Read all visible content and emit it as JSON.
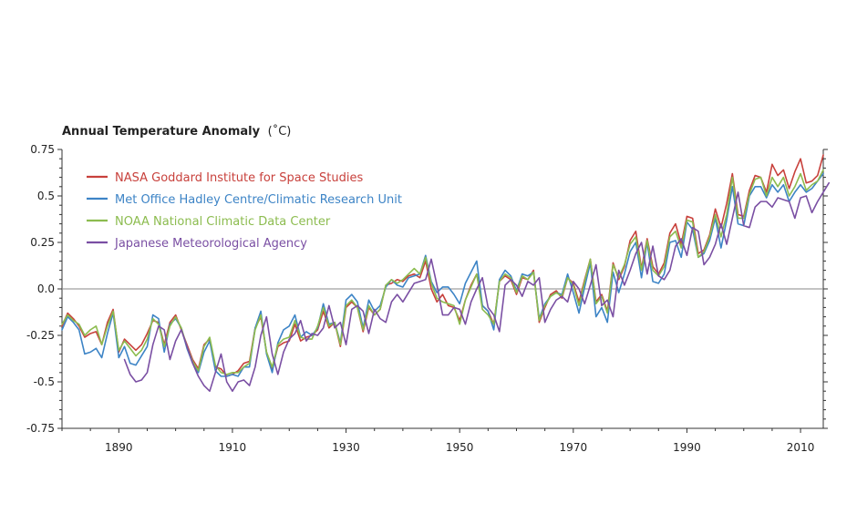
{
  "chart_data": {
    "type": "line",
    "title": "Annual Temperature Anomaly",
    "title_unit": "(˚C)",
    "xlabel": "",
    "ylabel": "",
    "xlim": [
      1880,
      2014
    ],
    "ylim": [
      -0.75,
      0.75
    ],
    "x_ticks": [
      1890,
      1910,
      1930,
      1950,
      1970,
      1990,
      2010
    ],
    "x_tick_labels": [
      "1890",
      "1910",
      "1930",
      "1950",
      "1970",
      "1990",
      "2010"
    ],
    "y_ticks": [
      0.75,
      0.5,
      0.25,
      0.0,
      -0.25,
      -0.5,
      -0.75
    ],
    "y_tick_labels": [
      "0.75",
      "0.5",
      "0.25",
      "0.0",
      "-0.25",
      "-0.5",
      "-0.75"
    ],
    "zero_line": true,
    "grid": false,
    "legend_position": "top-left",
    "series": [
      {
        "name": "NASA Goddard Institute for Space Studies",
        "color": "#c8413c",
        "start": 1880,
        "values": [
          -0.2,
          -0.13,
          -0.16,
          -0.2,
          -0.26,
          -0.24,
          -0.23,
          -0.3,
          -0.18,
          -0.11,
          -0.34,
          -0.27,
          -0.3,
          -0.33,
          -0.3,
          -0.24,
          -0.17,
          -0.18,
          -0.3,
          -0.18,
          -0.14,
          -0.22,
          -0.3,
          -0.38,
          -0.43,
          -0.3,
          -0.27,
          -0.42,
          -0.43,
          -0.47,
          -0.46,
          -0.44,
          -0.4,
          -0.39,
          -0.21,
          -0.15,
          -0.34,
          -0.43,
          -0.31,
          -0.29,
          -0.28,
          -0.19,
          -0.28,
          -0.26,
          -0.25,
          -0.22,
          -0.12,
          -0.21,
          -0.18,
          -0.31,
          -0.1,
          -0.07,
          -0.1,
          -0.23,
          -0.1,
          -0.14,
          -0.11,
          0.02,
          0.03,
          0.05,
          0.04,
          0.07,
          0.08,
          0.06,
          0.15,
          0.0,
          -0.07,
          -0.03,
          -0.09,
          -0.1,
          -0.17,
          -0.06,
          0.02,
          0.08,
          -0.09,
          -0.12,
          -0.19,
          0.04,
          0.07,
          0.05,
          -0.03,
          0.06,
          0.05,
          0.1,
          -0.18,
          -0.1,
          -0.03,
          -0.01,
          -0.05,
          0.06,
          0.03,
          -0.07,
          0.05,
          0.16,
          -0.07,
          -0.03,
          -0.12,
          0.14,
          0.05,
          0.12,
          0.26,
          0.31,
          0.11,
          0.27,
          0.12,
          0.08,
          0.14,
          0.3,
          0.35,
          0.24,
          0.39,
          0.38,
          0.19,
          0.21,
          0.29,
          0.43,
          0.33,
          0.46,
          0.62,
          0.4,
          0.39,
          0.53,
          0.61,
          0.6,
          0.52,
          0.67,
          0.61,
          0.64,
          0.54,
          0.63,
          0.7,
          0.57,
          0.58,
          0.61,
          0.72
        ]
      },
      {
        "name": "Met Office Hadley Centre/Climatic Research Unit",
        "color": "#3d84c6",
        "start": 1880,
        "values": [
          -0.22,
          -0.15,
          -0.18,
          -0.22,
          -0.35,
          -0.34,
          -0.32,
          -0.37,
          -0.24,
          -0.13,
          -0.37,
          -0.31,
          -0.4,
          -0.41,
          -0.36,
          -0.31,
          -0.14,
          -0.16,
          -0.34,
          -0.19,
          -0.16,
          -0.21,
          -0.32,
          -0.4,
          -0.45,
          -0.34,
          -0.28,
          -0.44,
          -0.47,
          -0.47,
          -0.46,
          -0.47,
          -0.42,
          -0.42,
          -0.21,
          -0.12,
          -0.35,
          -0.45,
          -0.29,
          -0.22,
          -0.2,
          -0.14,
          -0.26,
          -0.23,
          -0.25,
          -0.21,
          -0.08,
          -0.19,
          -0.18,
          -0.29,
          -0.06,
          -0.03,
          -0.07,
          -0.21,
          -0.06,
          -0.12,
          -0.09,
          0.01,
          0.05,
          0.02,
          0.01,
          0.06,
          0.07,
          0.08,
          0.18,
          0.04,
          -0.02,
          0.01,
          0.01,
          -0.03,
          -0.08,
          0.03,
          0.09,
          0.15,
          -0.09,
          -0.12,
          -0.22,
          0.05,
          0.1,
          0.07,
          -0.01,
          0.08,
          0.07,
          0.09,
          -0.16,
          -0.08,
          -0.04,
          -0.02,
          -0.03,
          0.08,
          -0.02,
          -0.13,
          0.01,
          0.14,
          -0.15,
          -0.1,
          -0.18,
          0.09,
          -0.02,
          0.08,
          0.2,
          0.25,
          0.06,
          0.25,
          0.04,
          0.03,
          0.08,
          0.25,
          0.26,
          0.17,
          0.36,
          0.32,
          0.17,
          0.19,
          0.26,
          0.38,
          0.22,
          0.37,
          0.55,
          0.35,
          0.34,
          0.5,
          0.55,
          0.55,
          0.49,
          0.56,
          0.52,
          0.56,
          0.47,
          0.52,
          0.56,
          0.52,
          0.54,
          0.58,
          0.62
        ]
      },
      {
        "name": "NOAA National Climatic Data Center",
        "color": "#8cbc4f",
        "start": 1880,
        "values": [
          -0.19,
          -0.14,
          -0.17,
          -0.19,
          -0.25,
          -0.22,
          -0.2,
          -0.3,
          -0.2,
          -0.12,
          -0.33,
          -0.28,
          -0.32,
          -0.36,
          -0.33,
          -0.27,
          -0.16,
          -0.19,
          -0.31,
          -0.2,
          -0.15,
          -0.21,
          -0.31,
          -0.39,
          -0.44,
          -0.31,
          -0.26,
          -0.41,
          -0.45,
          -0.46,
          -0.45,
          -0.45,
          -0.42,
          -0.4,
          -0.22,
          -0.14,
          -0.34,
          -0.42,
          -0.3,
          -0.27,
          -0.26,
          -0.17,
          -0.26,
          -0.27,
          -0.27,
          -0.2,
          -0.1,
          -0.2,
          -0.18,
          -0.3,
          -0.09,
          -0.06,
          -0.1,
          -0.22,
          -0.09,
          -0.14,
          -0.11,
          0.02,
          0.05,
          0.03,
          0.05,
          0.08,
          0.11,
          0.08,
          0.17,
          0.03,
          -0.05,
          -0.07,
          -0.08,
          -0.09,
          -0.19,
          -0.06,
          0.01,
          0.08,
          -0.11,
          -0.14,
          -0.19,
          0.04,
          0.08,
          0.06,
          -0.02,
          0.07,
          0.05,
          0.09,
          -0.17,
          -0.09,
          -0.04,
          -0.02,
          -0.04,
          0.06,
          0.02,
          -0.09,
          0.04,
          0.16,
          -0.08,
          -0.04,
          -0.13,
          0.13,
          0.06,
          0.13,
          0.24,
          0.28,
          0.1,
          0.26,
          0.1,
          0.07,
          0.12,
          0.28,
          0.31,
          0.22,
          0.37,
          0.36,
          0.17,
          0.2,
          0.28,
          0.4,
          0.28,
          0.4,
          0.6,
          0.38,
          0.38,
          0.51,
          0.59,
          0.6,
          0.5,
          0.6,
          0.55,
          0.6,
          0.5,
          0.55,
          0.62,
          0.53,
          0.56,
          0.58,
          0.64
        ]
      },
      {
        "name": "Japanese Meteorological Agency",
        "color": "#7a4fa3",
        "start": 1891,
        "values": [
          -0.38,
          -0.46,
          -0.5,
          -0.49,
          -0.45,
          -0.3,
          -0.2,
          -0.22,
          -0.38,
          -0.28,
          -0.22,
          -0.31,
          -0.4,
          -0.47,
          -0.52,
          -0.55,
          -0.45,
          -0.35,
          -0.5,
          -0.55,
          -0.5,
          -0.49,
          -0.52,
          -0.42,
          -0.25,
          -0.15,
          -0.35,
          -0.46,
          -0.34,
          -0.27,
          -0.24,
          -0.17,
          -0.28,
          -0.24,
          -0.25,
          -0.21,
          -0.09,
          -0.21,
          -0.18,
          -0.3,
          -0.11,
          -0.09,
          -0.12,
          -0.24,
          -0.11,
          -0.16,
          -0.18,
          -0.07,
          -0.03,
          -0.07,
          -0.02,
          0.03,
          0.04,
          0.05,
          0.16,
          0.02,
          -0.14,
          -0.14,
          -0.1,
          -0.11,
          -0.19,
          -0.07,
          0.0,
          0.06,
          -0.1,
          -0.14,
          -0.23,
          0.02,
          0.05,
          0.02,
          -0.04,
          0.04,
          0.02,
          0.06,
          -0.18,
          -0.11,
          -0.06,
          -0.04,
          -0.07,
          0.04,
          0.0,
          -0.08,
          0.02,
          0.13,
          -0.09,
          -0.06,
          -0.15,
          0.1,
          0.02,
          0.1,
          0.19,
          0.25,
          0.08,
          0.23,
          0.07,
          0.05,
          0.1,
          0.23,
          0.27,
          0.18,
          0.33,
          0.31,
          0.13,
          0.17,
          0.24,
          0.35,
          0.24,
          0.38,
          0.52,
          0.34,
          0.33,
          0.44,
          0.47,
          0.47,
          0.44,
          0.49,
          0.48,
          0.47,
          0.38,
          0.49,
          0.5,
          0.41,
          0.47,
          0.52,
          0.57
        ]
      }
    ]
  }
}
